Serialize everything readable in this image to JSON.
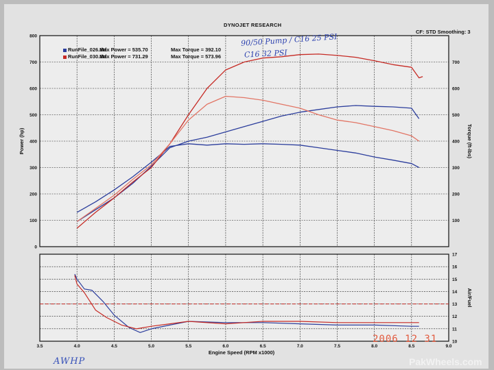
{
  "header": {
    "title": "DYNOJET RESEARCH",
    "cf_text": "CF: STD  Smoothing: 3"
  },
  "legend": [
    {
      "file": "RunFile_026.drf",
      "power_text": "Max Power = 535.70",
      "torque_text": "Max Torque = 392.10",
      "color": "#2b3d9c"
    },
    {
      "file": "RunFile_030.drf",
      "power_text": "Max Power = 731.29",
      "torque_text": "Max Torque = 573.96",
      "color": "#c62a24"
    }
  ],
  "handwriting": {
    "note1": "90/50 Pump / C16 25 PSI",
    "note2": "C16 32 PSI"
  },
  "signature": "AWHP",
  "datestamp": "2006 12 31",
  "watermark": "PakWheels.com",
  "colors": {
    "run026": "#2b3d9c",
    "run030": "#c62a24",
    "afr_ref": "#c62a24",
    "grid": "#222222"
  },
  "chart_data": [
    {
      "type": "line",
      "title": "",
      "xlabel": "",
      "ylabel": "Power (hp)",
      "y2label": "Torque (ft-lbs)",
      "xlim": [
        3.5,
        9.0
      ],
      "ylim": [
        0,
        800
      ],
      "y2lim": [
        0,
        800
      ],
      "x_ticks": [
        3.5,
        4.0,
        4.5,
        5.0,
        5.5,
        6.0,
        6.5,
        7.0,
        7.5,
        8.0,
        8.5,
        9.0
      ],
      "y_ticks": [
        0,
        100,
        200,
        300,
        400,
        500,
        600,
        700,
        800
      ],
      "y2_ticks": [
        100,
        200,
        300,
        400,
        500,
        600,
        700
      ],
      "grid": true,
      "legend_position": "top-left",
      "series": [
        {
          "name": "RunFile_026.drf Power",
          "axis": "left",
          "color": "#2b3d9c",
          "x": [
            4.0,
            4.25,
            4.5,
            4.75,
            5.0,
            5.25,
            5.5,
            5.75,
            6.0,
            6.25,
            6.5,
            6.75,
            7.0,
            7.25,
            7.5,
            7.75,
            8.0,
            8.25,
            8.5,
            8.6
          ],
          "y": [
            95,
            140,
            185,
            240,
            305,
            375,
            400,
            415,
            435,
            455,
            475,
            495,
            510,
            520,
            530,
            535,
            532,
            530,
            525,
            485
          ]
        },
        {
          "name": "RunFile_026.drf Torque",
          "axis": "right",
          "color": "#2b3d9c",
          "x": [
            4.0,
            4.25,
            4.5,
            4.75,
            5.0,
            5.25,
            5.5,
            5.75,
            6.0,
            6.25,
            6.5,
            6.75,
            7.0,
            7.25,
            7.5,
            7.75,
            8.0,
            8.25,
            8.5,
            8.6
          ],
          "y": [
            130,
            170,
            215,
            265,
            320,
            380,
            390,
            385,
            390,
            388,
            390,
            388,
            385,
            375,
            365,
            355,
            340,
            328,
            315,
            300
          ]
        },
        {
          "name": "RunFile_030.drf Power",
          "axis": "left",
          "color": "#c62a24",
          "x": [
            4.0,
            4.25,
            4.5,
            4.75,
            5.0,
            5.25,
            5.5,
            5.75,
            6.0,
            6.25,
            6.5,
            6.75,
            7.0,
            7.25,
            7.5,
            7.75,
            8.0,
            8.25,
            8.5,
            8.6,
            8.65
          ],
          "y": [
            70,
            130,
            185,
            245,
            300,
            390,
            500,
            600,
            670,
            700,
            715,
            720,
            728,
            730,
            725,
            718,
            705,
            690,
            680,
            640,
            645
          ]
        },
        {
          "name": "RunFile_030.drf Torque",
          "axis": "right",
          "color": "#e27565",
          "x": [
            4.0,
            4.25,
            4.5,
            4.75,
            5.0,
            5.25,
            5.5,
            5.75,
            6.0,
            6.25,
            6.5,
            6.75,
            7.0,
            7.25,
            7.5,
            7.75,
            8.0,
            8.25,
            8.5,
            8.6
          ],
          "y": [
            95,
            145,
            195,
            255,
            310,
            390,
            480,
            540,
            570,
            565,
            555,
            540,
            525,
            500,
            480,
            470,
            455,
            440,
            420,
            400
          ]
        }
      ]
    },
    {
      "type": "line",
      "title": "",
      "xlabel": "Engine Speed (RPM x1000)",
      "ylabel": "",
      "y2label": "Air/Fuel",
      "xlim": [
        3.5,
        9.0
      ],
      "ylim": [
        10,
        17
      ],
      "x_ticks": [
        3.5,
        4.0,
        4.5,
        5.0,
        5.5,
        6.0,
        6.5,
        7.0,
        7.5,
        8.0,
        8.5,
        9.0
      ],
      "y2_ticks": [
        10,
        11,
        12,
        13,
        14,
        15,
        16,
        17
      ],
      "grid": true,
      "reference_line": 13.0,
      "series": [
        {
          "name": "RunFile_026.drf A/F",
          "color": "#2b3d9c",
          "x": [
            3.97,
            4.0,
            4.1,
            4.2,
            4.35,
            4.5,
            4.7,
            4.85,
            5.0,
            5.25,
            5.5,
            6.0,
            6.5,
            7.0,
            7.5,
            8.0,
            8.5,
            8.6
          ],
          "y": [
            15.4,
            15.0,
            14.2,
            14.1,
            13.2,
            12.1,
            11.1,
            10.7,
            11.0,
            11.3,
            11.6,
            11.5,
            11.5,
            11.4,
            11.3,
            11.3,
            11.2,
            11.2
          ]
        },
        {
          "name": "RunFile_030.drf A/F",
          "color": "#c62a24",
          "x": [
            3.97,
            4.0,
            4.1,
            4.25,
            4.4,
            4.6,
            4.8,
            5.0,
            5.25,
            5.5,
            6.0,
            6.5,
            7.0,
            7.5,
            8.0,
            8.5,
            8.6
          ],
          "y": [
            15.3,
            14.6,
            13.9,
            12.5,
            11.9,
            11.3,
            11.0,
            11.2,
            11.4,
            11.6,
            11.4,
            11.6,
            11.6,
            11.5,
            11.5,
            11.5,
            11.5
          ]
        }
      ]
    }
  ]
}
